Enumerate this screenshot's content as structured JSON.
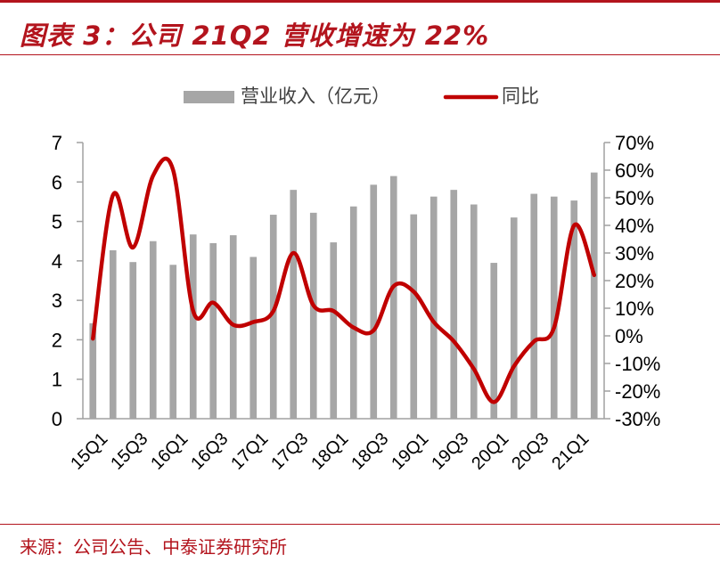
{
  "title": "图表 3：公司 21Q2 营收增速为 22%",
  "source": "来源：公司公告、中泰证券研究所",
  "chart_data": {
    "type": "bar+line",
    "legend": {
      "placement": "top-center",
      "bar_label": "营业收入（亿元）",
      "line_label": "同比"
    },
    "colors": {
      "bar": "#a6a6a6",
      "line": "#c00000",
      "accent": "#b3141d"
    },
    "categories": [
      "15Q1",
      "15Q2",
      "15Q3",
      "15Q4",
      "16Q1",
      "16Q2",
      "16Q3",
      "16Q4",
      "17Q1",
      "17Q2",
      "17Q3",
      "17Q4",
      "18Q1",
      "18Q2",
      "18Q3",
      "18Q4",
      "19Q1",
      "19Q2",
      "19Q3",
      "19Q4",
      "20Q1",
      "20Q2",
      "20Q3",
      "20Q4",
      "21Q1",
      "21Q2"
    ],
    "tick_labels": [
      "15Q1",
      "15Q3",
      "16Q1",
      "16Q3",
      "17Q1",
      "17Q3",
      "18Q1",
      "18Q3",
      "19Q1",
      "19Q3",
      "20Q1",
      "20Q3",
      "21Q1"
    ],
    "series": [
      {
        "name": "营业收入（亿元）",
        "type": "bar",
        "axis": "left",
        "values": [
          2.42,
          4.27,
          3.97,
          4.5,
          3.9,
          4.67,
          4.45,
          4.65,
          4.1,
          5.17,
          5.8,
          5.22,
          4.47,
          5.38,
          5.93,
          6.15,
          5.18,
          5.63,
          5.8,
          5.43,
          3.95,
          5.1,
          5.7,
          5.63,
          5.53,
          6.24
        ]
      },
      {
        "name": "同比",
        "type": "line",
        "axis": "right",
        "values": [
          -1,
          51,
          32,
          58,
          60,
          9,
          12,
          4,
          5,
          9,
          30,
          11,
          9,
          3,
          2,
          18,
          16,
          5,
          -2,
          -12,
          -24,
          -11,
          -2,
          3,
          40,
          22
        ]
      }
    ],
    "y_left": {
      "min": 0,
      "max": 7,
      "step": 1,
      "ticks": [
        "0",
        "1",
        "2",
        "3",
        "4",
        "5",
        "6",
        "7"
      ]
    },
    "y_right": {
      "min": -30,
      "max": 70,
      "step": 10,
      "ticks": [
        "-30%",
        "-20%",
        "-10%",
        "0%",
        "10%",
        "20%",
        "30%",
        "40%",
        "50%",
        "60%",
        "70%"
      ]
    },
    "grid": false
  }
}
